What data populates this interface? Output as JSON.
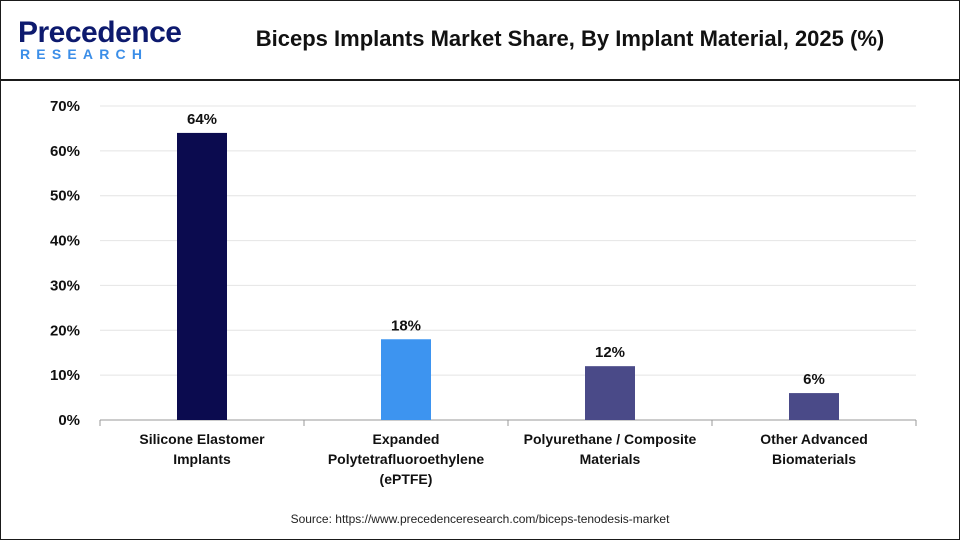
{
  "header": {
    "logo_main": "Precedence",
    "logo_sub": "RESEARCH",
    "title": "Biceps Implants Market Share, By Implant Material, 2025 (%)"
  },
  "footer": {
    "source": "Source: https://www.precedenceresearch.com/biceps-tenodesis-market"
  },
  "chart_data": {
    "type": "bar",
    "title": "Biceps Implants Market Share, By Implant Material, 2025 (%)",
    "xlabel": "",
    "ylabel": "",
    "categories": [
      [
        "Silicone Elastomer",
        "Implants"
      ],
      [
        "Expanded",
        "Polytetrafluoroethylene",
        "(ePTFE)"
      ],
      [
        "Polyurethane / Composite",
        "Materials"
      ],
      [
        "Other Advanced",
        "Biomaterials"
      ]
    ],
    "values": [
      64,
      18,
      12,
      6
    ],
    "data_labels": [
      "64%",
      "18%",
      "12%",
      "6%"
    ],
    "colors": [
      "#0b0b4f",
      "#3d94f0",
      "#4a4a88",
      "#4a4a88"
    ],
    "ylim": [
      0,
      70
    ],
    "yticks": [
      0,
      10,
      20,
      30,
      40,
      50,
      60,
      70
    ],
    "ytick_labels": [
      "0%",
      "10%",
      "20%",
      "30%",
      "40%",
      "50%",
      "60%",
      "70%"
    ],
    "grid": true,
    "legend": "none"
  }
}
